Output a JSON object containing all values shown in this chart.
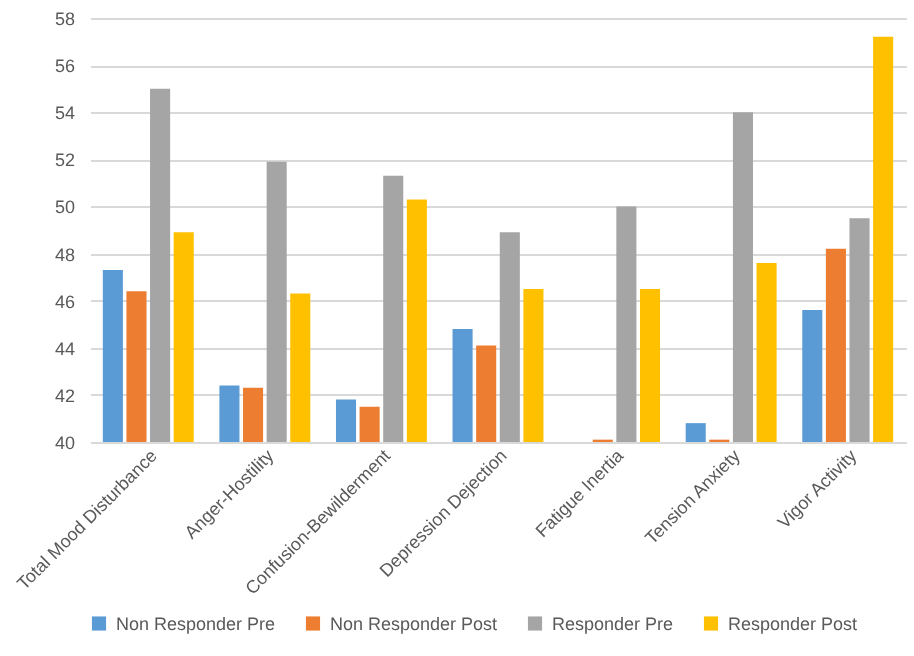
{
  "chart_data": {
    "type": "bar",
    "categories": [
      "Total Mood Disturbance",
      "Anger-Hostility",
      "Confusion-Bewilderment",
      "Depression Dejection",
      "Fatigue Inertia",
      "Tension Anxiety",
      "Vigor Activity"
    ],
    "series": [
      {
        "name": "Non Responder Pre",
        "color": "#5b9bd5",
        "values": [
          47.3,
          42.4,
          41.8,
          44.8,
          null,
          40.8,
          45.6
        ]
      },
      {
        "name": "Non Responder Post",
        "color": "#ed7d31",
        "values": [
          46.4,
          42.3,
          41.5,
          44.1,
          40.1,
          40.1,
          48.2
        ]
      },
      {
        "name": "Responder Pre",
        "color": "#a5a5a5",
        "values": [
          55.0,
          51.9,
          51.3,
          48.9,
          50.0,
          54.0,
          49.5
        ]
      },
      {
        "name": "Responder Post",
        "color": "#ffc000",
        "values": [
          48.9,
          46.3,
          50.3,
          46.5,
          46.5,
          47.6,
          57.2
        ]
      }
    ],
    "ylim": [
      40,
      58
    ],
    "yticks": [
      40,
      42,
      44,
      46,
      48,
      50,
      52,
      54,
      56,
      58
    ],
    "grid": "y",
    "legend": "bottom"
  }
}
